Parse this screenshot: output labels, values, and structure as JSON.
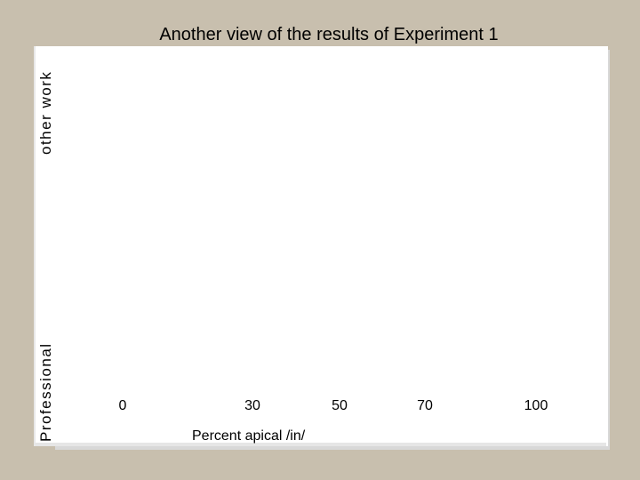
{
  "chart_data": {
    "type": "scatter",
    "title": "Another view of the results of Experiment 1",
    "xlabel": "Percent apical /in/",
    "ylabel_top": "other work",
    "ylabel_bottom": "Professional",
    "xticks": [
      "0",
      "30",
      "50",
      "70",
      "100"
    ],
    "xlim": [
      0,
      100
    ],
    "grid": false,
    "series": []
  }
}
